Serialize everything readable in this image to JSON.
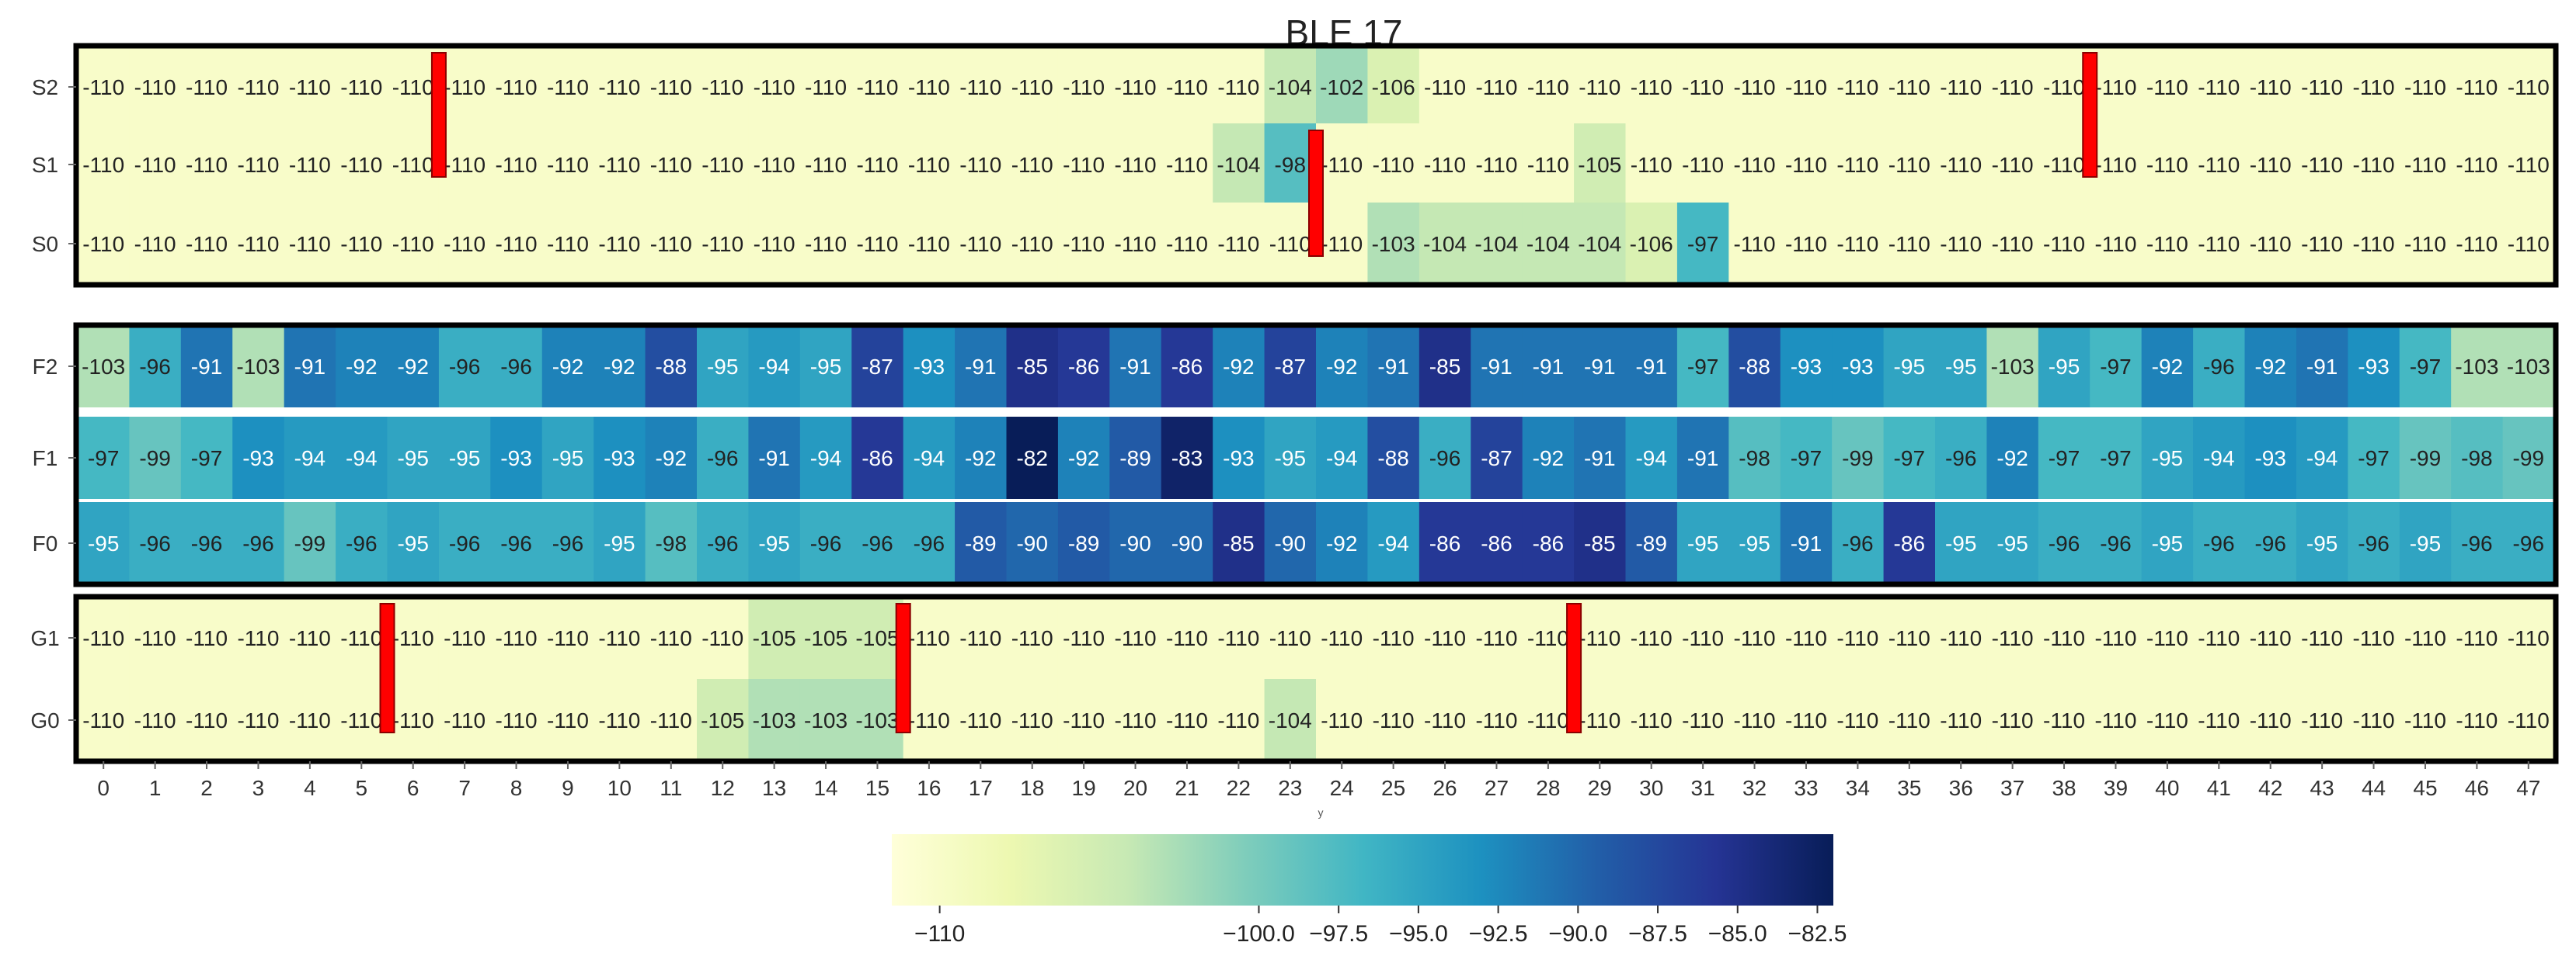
{
  "chart_data": {
    "type": "heatmap",
    "title": "BLE 17",
    "xlabel": "y",
    "ylabel": "",
    "x_ticks": [
      "0",
      "1",
      "2",
      "3",
      "4",
      "5",
      "6",
      "7",
      "8",
      "9",
      "10",
      "11",
      "12",
      "13",
      "14",
      "15",
      "16",
      "17",
      "18",
      "19",
      "20",
      "21",
      "22",
      "23",
      "24",
      "25",
      "26",
      "27",
      "28",
      "29",
      "30",
      "31",
      "32",
      "33",
      "34",
      "35",
      "36",
      "37",
      "38",
      "39",
      "40",
      "41",
      "42",
      "43",
      "44",
      "45",
      "46",
      "47"
    ],
    "rows": [
      {
        "label": "S2",
        "values": [
          -110,
          -110,
          -110,
          -110,
          -110,
          -110,
          -110,
          -110,
          -110,
          -110,
          -110,
          -110,
          -110,
          -110,
          -110,
          -110,
          -110,
          -110,
          -110,
          -110,
          -110,
          -110,
          -110,
          -104,
          -102,
          -106,
          -110,
          -110,
          -110,
          -110,
          -110,
          -110,
          -110,
          -110,
          -110,
          -110,
          -110,
          -110,
          -110,
          -110,
          -110,
          -110,
          -110,
          -110,
          -110,
          -110,
          -110,
          -110
        ]
      },
      {
        "label": "S1",
        "values": [
          -110,
          -110,
          -110,
          -110,
          -110,
          -110,
          -110,
          -110,
          -110,
          -110,
          -110,
          -110,
          -110,
          -110,
          -110,
          -110,
          -110,
          -110,
          -110,
          -110,
          -110,
          -110,
          -104,
          -98,
          -110,
          -110,
          -110,
          -110,
          -110,
          -105,
          -110,
          -110,
          -110,
          -110,
          -110,
          -110,
          -110,
          -110,
          -110,
          -110,
          -110,
          -110,
          -110,
          -110,
          -110,
          -110,
          -110,
          -110
        ]
      },
      {
        "label": "S0",
        "values": [
          -110,
          -110,
          -110,
          -110,
          -110,
          -110,
          -110,
          -110,
          -110,
          -110,
          -110,
          -110,
          -110,
          -110,
          -110,
          -110,
          -110,
          -110,
          -110,
          -110,
          -110,
          -110,
          -110,
          -110,
          -110,
          -103,
          -104,
          -104,
          -104,
          -104,
          -106,
          -97,
          -110,
          -110,
          -110,
          -110,
          -110,
          -110,
          -110,
          -110,
          -110,
          -110,
          -110,
          -110,
          -110,
          -110,
          -110,
          -110
        ]
      },
      {
        "label": "F2",
        "values": [
          -103,
          -96,
          -91,
          -103,
          -91,
          -92,
          -92,
          -96,
          -96,
          -92,
          -92,
          -88,
          -95,
          -94,
          -95,
          -87,
          -93,
          -91,
          -85,
          -86,
          -91,
          -86,
          -92,
          -87,
          -92,
          -91,
          -85,
          -91,
          -91,
          -91,
          -91,
          -97,
          -88,
          -93,
          -93,
          -95,
          -95,
          -103,
          -95,
          -97,
          -92,
          -96,
          -92,
          -91,
          -93,
          -97,
          -103,
          -103
        ]
      },
      {
        "label": "F1",
        "values": [
          -97,
          -99,
          -97,
          -93,
          -94,
          -94,
          -95,
          -95,
          -93,
          -95,
          -93,
          -92,
          -96,
          -91,
          -94,
          -86,
          -94,
          -92,
          -82,
          -92,
          -89,
          -83,
          -93,
          -95,
          -94,
          -88,
          -96,
          -87,
          -92,
          -91,
          -94,
          -91,
          -98,
          -97,
          -99,
          -97,
          -96,
          -92,
          -97,
          -97,
          -95,
          -94,
          -93,
          -94,
          -97,
          -99,
          -98,
          -99
        ]
      },
      {
        "label": "F0",
        "values": [
          -95,
          -96,
          -96,
          -96,
          -99,
          -96,
          -95,
          -96,
          -96,
          -96,
          -95,
          -98,
          -96,
          -95,
          -96,
          -96,
          -96,
          -89,
          -90,
          -89,
          -90,
          -90,
          -85,
          -90,
          -92,
          -94,
          -86,
          -86,
          -86,
          -85,
          -89,
          -95,
          -95,
          -91,
          -96,
          -86,
          -95,
          -95,
          -96,
          -96,
          -95,
          -96,
          -96,
          -95,
          -96,
          -95,
          -96,
          -96
        ]
      },
      {
        "label": "G1",
        "values": [
          -110,
          -110,
          -110,
          -110,
          -110,
          -110,
          -110,
          -110,
          -110,
          -110,
          -110,
          -110,
          -110,
          -105,
          -105,
          -105,
          -110,
          -110,
          -110,
          -110,
          -110,
          -110,
          -110,
          -110,
          -110,
          -110,
          -110,
          -110,
          -110,
          -110,
          -110,
          -110,
          -110,
          -110,
          -110,
          -110,
          -110,
          -110,
          -110,
          -110,
          -110,
          -110,
          -110,
          -110,
          -110,
          -110,
          -110,
          -110
        ]
      },
      {
        "label": "G0",
        "values": [
          -110,
          -110,
          -110,
          -110,
          -110,
          -110,
          -110,
          -110,
          -110,
          -110,
          -110,
          -110,
          -105,
          -103,
          -103,
          -103,
          -110,
          -110,
          -110,
          -110,
          -110,
          -110,
          -110,
          -104,
          -110,
          -110,
          -110,
          -110,
          -110,
          -110,
          -110,
          -110,
          -110,
          -110,
          -110,
          -110,
          -110,
          -110,
          -110,
          -110,
          -110,
          -110,
          -110,
          -110,
          -110,
          -110,
          -110,
          -110
        ]
      }
    ],
    "groups": [
      {
        "rows": [
          "S2",
          "S1",
          "S0"
        ]
      },
      {
        "rows": [
          "F2",
          "F1",
          "F0"
        ]
      },
      {
        "rows": [
          "G1",
          "G0"
        ]
      }
    ],
    "markers": [
      {
        "color": "#ff0000",
        "x": 7,
        "rows": [
          "S2",
          "S1"
        ]
      },
      {
        "color": "#ff0000",
        "x": 39,
        "rows": [
          "S2",
          "S1"
        ]
      },
      {
        "color": "#ff0000",
        "x": 24,
        "rows": [
          "S1",
          "S0"
        ]
      },
      {
        "color": "#ff0000",
        "x": 6,
        "rows": [
          "G1",
          "G0"
        ]
      },
      {
        "color": "#ff0000",
        "x": 16,
        "rows": [
          "G1",
          "G0"
        ]
      },
      {
        "color": "#ff0000",
        "x": 29,
        "rows": [
          "G1",
          "G0"
        ]
      }
    ],
    "colorbar": {
      "range": [
        -111.5,
        -82
      ],
      "ticks": [
        -110,
        -100.0,
        -97.5,
        -95.0,
        -92.5,
        -90.0,
        -87.5,
        -85.0,
        -82.5
      ],
      "tick_labels": [
        "−110",
        "−100.0",
        "−97.5",
        "−95.0",
        "−92.5",
        "−90.0",
        "−87.5",
        "−85.0",
        "−82.5"
      ],
      "colormap": "YlGnBu",
      "position": "bottom"
    },
    "grid": false
  }
}
